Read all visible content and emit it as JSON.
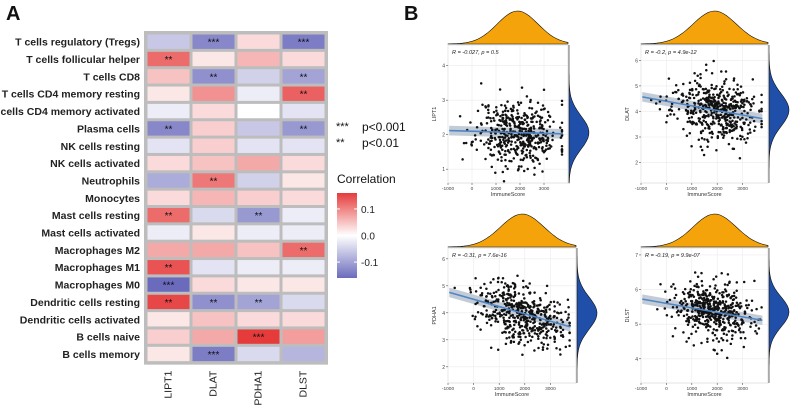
{
  "panel_labels": [
    "A",
    "B"
  ],
  "significance_legend": [
    {
      "stars": "***",
      "label": "p<0.001"
    },
    {
      "stars": "**",
      "label": "p<0.01"
    }
  ],
  "colors": {
    "positive": "#e63b3b",
    "neutral": "#ffffff",
    "negative": "#6b6bbd",
    "grid_border": "#bdbdbd",
    "density_fill": "#f5a30a",
    "density_fill_right": "#1f4fa8",
    "fit_line": "#4f86c6",
    "fit_band": "#b9c3cf",
    "point": "#111111"
  },
  "chart_data": [
    {
      "type": "heatmap",
      "title": "",
      "rows": [
        "T cells regulatory (Tregs)",
        "T cells follicular helper",
        "T cells CD8",
        "T cells CD4 memory resting",
        "T cells CD4 memory activated",
        "Plasma cells",
        "NK cells resting",
        "NK cells activated",
        "Neutrophils",
        "Monocytes",
        "Mast cells resting",
        "Mast cells activated",
        "Macrophages M2",
        "Macrophages M1",
        "Macrophages M0",
        "Dendritic cells resting",
        "Dendritic cells activated",
        "B cells naive",
        "B cells memory"
      ],
      "columns": [
        "LIPT1",
        "DLAT",
        "PDHA1",
        "DLST"
      ],
      "values": [
        [
          -0.06,
          -0.13,
          0.03,
          -0.14
        ],
        [
          0.12,
          0.02,
          0.06,
          0.03
        ],
        [
          0.05,
          -0.12,
          -0.05,
          -0.1
        ],
        [
          0.02,
          0.09,
          -0.02,
          0.13
        ],
        [
          -0.02,
          0.03,
          0.0,
          -0.03
        ],
        [
          -0.13,
          0.04,
          -0.06,
          -0.11
        ],
        [
          -0.03,
          0.04,
          -0.03,
          -0.03
        ],
        [
          0.03,
          0.05,
          0.07,
          0.03
        ],
        [
          -0.09,
          0.11,
          -0.05,
          0.02
        ],
        [
          0.03,
          0.06,
          0.04,
          0.03
        ],
        [
          0.12,
          -0.04,
          -0.11,
          -0.02
        ],
        [
          -0.02,
          0.02,
          -0.02,
          -0.02
        ],
        [
          0.07,
          0.07,
          0.05,
          0.12
        ],
        [
          0.14,
          -0.03,
          -0.02,
          -0.02
        ],
        [
          -0.16,
          0.03,
          0.02,
          0.02
        ],
        [
          0.15,
          -0.12,
          -0.1,
          -0.04
        ],
        [
          0.02,
          0.05,
          0.03,
          0.03
        ],
        [
          0.04,
          0.07,
          0.21,
          0.08
        ],
        [
          0.02,
          -0.14,
          -0.04,
          -0.08
        ]
      ],
      "stars": [
        [
          "",
          "***",
          "",
          "***"
        ],
        [
          "**",
          "",
          "",
          ""
        ],
        [
          "",
          "**",
          "",
          "**"
        ],
        [
          "",
          "",
          "",
          "**"
        ],
        [
          "",
          "",
          "",
          ""
        ],
        [
          "**",
          "",
          "",
          "**"
        ],
        [
          "",
          "",
          "",
          ""
        ],
        [
          "",
          "",
          "",
          ""
        ],
        [
          "",
          "**",
          "",
          ""
        ],
        [
          "",
          "",
          "",
          ""
        ],
        [
          "**",
          "",
          "**",
          ""
        ],
        [
          "",
          "",
          "",
          ""
        ],
        [
          "",
          "",
          "",
          "**"
        ],
        [
          "**",
          "",
          "",
          ""
        ],
        [
          "***",
          "",
          "",
          ""
        ],
        [
          "**",
          "**",
          "**",
          ""
        ],
        [
          "",
          "",
          "",
          ""
        ],
        [
          "",
          "",
          "***",
          ""
        ],
        [
          "",
          "***",
          "",
          ""
        ]
      ],
      "colorbar": {
        "title": "Correlation",
        "range": [
          -0.16,
          0.16
        ],
        "ticks": [
          0.1,
          0.0,
          -0.1
        ],
        "tick_labels": [
          "0.1",
          "0.0",
          "-0.1"
        ]
      }
    },
    {
      "type": "scatter",
      "gene": "LIPT1",
      "xlabel": "ImmuneScore",
      "ylabel": "LIPT1",
      "annotation": "R = -0.027, p = 0.5",
      "xlim": [
        -1000,
        4000
      ],
      "ylim": [
        0.6,
        4.6
      ],
      "xticks": [
        -1000,
        0,
        1000,
        2000,
        3000
      ],
      "yticks": [
        1,
        2,
        3,
        4
      ],
      "ytick_labels": [
        "1",
        "2",
        "3",
        "4"
      ],
      "fit": {
        "intercept": 2.1,
        "slope": -2e-05
      },
      "x_center": 1900,
      "x_spread": 850,
      "y_spread": 0.48,
      "n_points": 480,
      "seed": 11
    },
    {
      "type": "scatter",
      "gene": "DLAT",
      "xlabel": "ImmuneScore",
      "ylabel": "DLAT",
      "annotation": "R = -0.2, p = 4.9e-12",
      "xlim": [
        -1000,
        4000
      ],
      "ylim": [
        1.2,
        6.6
      ],
      "xticks": [
        -1000,
        0,
        1000,
        2000,
        3000
      ],
      "yticks": [
        2,
        3,
        4,
        5,
        6
      ],
      "ytick_labels": [
        "2",
        "3",
        "4",
        "5",
        "6"
      ],
      "fit": {
        "intercept": 4.4,
        "slope": -0.00018
      },
      "x_center": 1900,
      "x_spread": 850,
      "y_spread": 0.62,
      "n_points": 480,
      "seed": 23
    },
    {
      "type": "scatter",
      "gene": "PDHA1",
      "xlabel": "ImmuneScore",
      "ylabel": "PDHA1",
      "annotation": "R = -0.31, p = 7.6e-16",
      "xlim": [
        -1000,
        4000
      ],
      "ylim": [
        1.4,
        6.4
      ],
      "xticks": [
        -1000,
        0,
        1000,
        2000,
        3000
      ],
      "yticks": [
        2,
        3,
        4,
        5,
        6
      ],
      "ytick_labels": [
        "2",
        "3",
        "4",
        "5",
        "6"
      ],
      "fit": {
        "intercept": 4.5,
        "slope": -0.00027
      },
      "x_center": 1900,
      "x_spread": 850,
      "y_spread": 0.55,
      "n_points": 480,
      "seed": 37
    },
    {
      "type": "scatter",
      "gene": "DLST",
      "xlabel": "ImmuneScore",
      "ylabel": "DLST",
      "annotation": "R = -0.19, p = 9.9e-07",
      "xlim": [
        -1000,
        4000
      ],
      "ylim": [
        3.3,
        7.2
      ],
      "xticks": [
        -1000,
        0,
        1000,
        2000,
        3000
      ],
      "yticks": [
        4,
        5,
        6,
        7
      ],
      "ytick_labels": [
        "4",
        "5",
        "6",
        "7"
      ],
      "fit": {
        "intercept": 5.6,
        "slope": -0.00013
      },
      "x_center": 1900,
      "x_spread": 850,
      "y_spread": 0.42,
      "n_points": 480,
      "seed": 53
    }
  ]
}
